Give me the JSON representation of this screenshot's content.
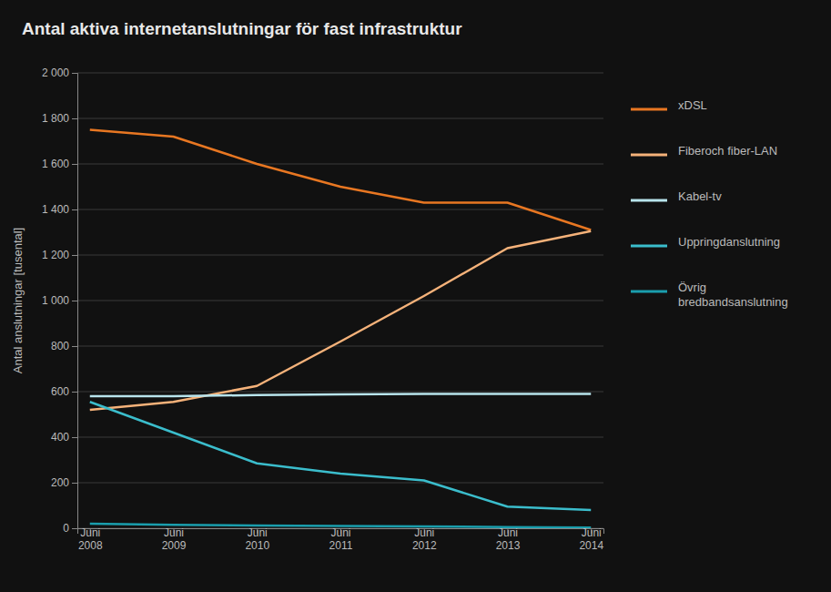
{
  "chart_data": {
    "type": "line",
    "title": "Antal aktiva internetanslutningar för fast infrastruktur",
    "y_label": "Antal anslutningar [tusental]",
    "categories": [
      "Juni\n2008",
      "Juni\n2009",
      "Juni\n2010",
      "Juni\n2011",
      "Juni\n2012",
      "Juni\n2013",
      "Juni\n2014"
    ],
    "series": [
      {
        "name": "xDSL",
        "color": "#E87722",
        "values": [
          1750,
          1720,
          1600,
          1500,
          1430,
          1430,
          1310
        ]
      },
      {
        "name": "Fiberoch fiber-LAN",
        "color": "#F5B27A",
        "values": [
          520,
          555,
          625,
          820,
          1020,
          1230,
          1305
        ]
      },
      {
        "name": "Kabel-tv",
        "color": "#B8E4EC",
        "values": [
          580,
          580,
          585,
          588,
          590,
          590,
          590
        ]
      },
      {
        "name": "Uppringdanslutning",
        "color": "#3BBDCC",
        "values": [
          555,
          420,
          285,
          240,
          210,
          95,
          80
        ]
      },
      {
        "name": "Övrig\nbredbandsanslutning",
        "color": "#1A9EAD",
        "values": [
          20,
          15,
          12,
          10,
          8,
          5,
          3
        ]
      }
    ],
    "ylim": [
      0,
      2000
    ],
    "yticks": [
      0,
      200,
      400,
      600,
      800,
      {
        "value": 1000,
        "label": "1 000"
      },
      {
        "value": 1200,
        "label": "1 200"
      },
      {
        "value": 1400,
        "label": "1 400"
      },
      {
        "value": 1600,
        "label": "1 600"
      },
      {
        "value": 1800,
        "label": "1 800"
      },
      {
        "value": 2000,
        "label": "2 000"
      }
    ],
    "grid": true,
    "legend": "right"
  }
}
